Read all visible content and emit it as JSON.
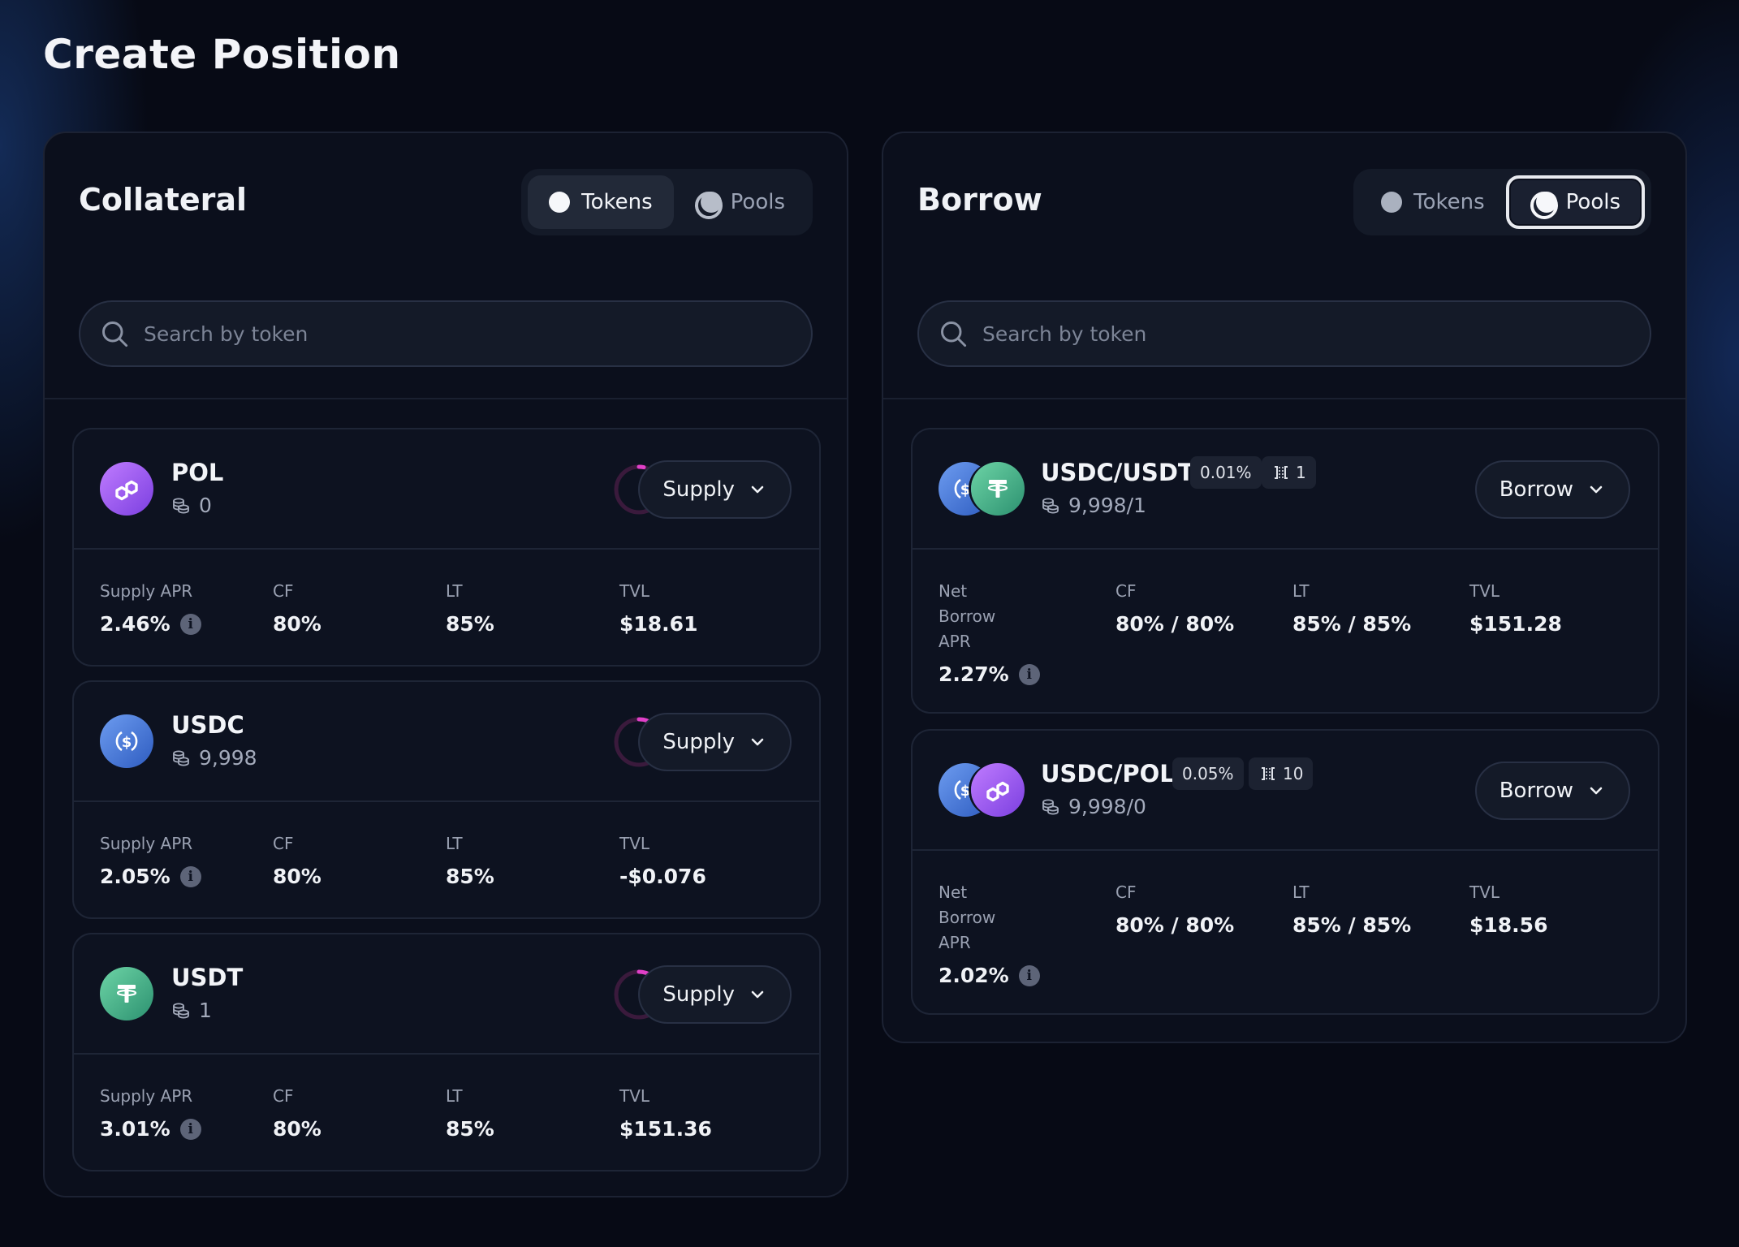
{
  "page": {
    "title": "Create Position"
  },
  "search_placeholder": "Search by token",
  "collateral": {
    "title": "Collateral",
    "toggle": {
      "tokens_label": "Tokens",
      "pools_label": "Pools",
      "active": "Tokens"
    },
    "cards": [
      {
        "name": "POL",
        "balance": "0",
        "icon": "polygon-icon",
        "action": "Supply",
        "apr_label": "Supply APR",
        "apr": "2.46%",
        "cf_label": "CF",
        "cf": "80%",
        "lt_label": "LT",
        "lt": "85%",
        "tvl_label": "TVL",
        "tvl": "$18.61"
      },
      {
        "name": "USDC",
        "balance": "9,998",
        "icon": "usdc-icon",
        "action": "Supply",
        "apr_label": "Supply APR",
        "apr": "2.05%",
        "cf_label": "CF",
        "cf": "80%",
        "lt_label": "LT",
        "lt": "85%",
        "tvl_label": "TVL",
        "tvl": "-$0.076"
      },
      {
        "name": "USDT",
        "balance": "1",
        "icon": "tether-icon",
        "action": "Supply",
        "apr_label": "Supply APR",
        "apr": "3.01%",
        "cf_label": "CF",
        "cf": "80%",
        "lt_label": "LT",
        "lt": "85%",
        "tvl_label": "TVL",
        "tvl": "$151.36"
      }
    ]
  },
  "borrow": {
    "title": "Borrow",
    "toggle": {
      "tokens_label": "Tokens",
      "pools_label": "Pools",
      "active": "Pools"
    },
    "cards": [
      {
        "name": "USDC/USDT",
        "fee": "0.01%",
        "tick": "1",
        "balance": "9,998/1",
        "action": "Borrow",
        "apr_label_1": "Net",
        "apr_label_2": "Borrow",
        "apr_label_3": "APR",
        "apr": "2.27%",
        "cf_label": "CF",
        "cf": "80% / 80%",
        "lt_label": "LT",
        "lt": "85% / 85%",
        "tvl_label": "TVL",
        "tvl": "$151.28"
      },
      {
        "name": "USDC/POL",
        "fee": "0.05%",
        "tick": "10",
        "balance": "9,998/0",
        "action": "Borrow",
        "apr_label_1": "Net",
        "apr_label_2": "Borrow",
        "apr_label_3": "APR",
        "apr": "2.02%",
        "cf_label": "CF",
        "cf": "80% / 80%",
        "lt_label": "LT",
        "lt": "85% / 85%",
        "tvl_label": "TVL",
        "tvl": "$18.56"
      }
    ]
  },
  "colors": {
    "background": "#070a15",
    "panel": "#0b0f1c",
    "card": "#0d1220",
    "spinner_accent": "#e040c8",
    "spinner_track": "#3a1a3c"
  }
}
